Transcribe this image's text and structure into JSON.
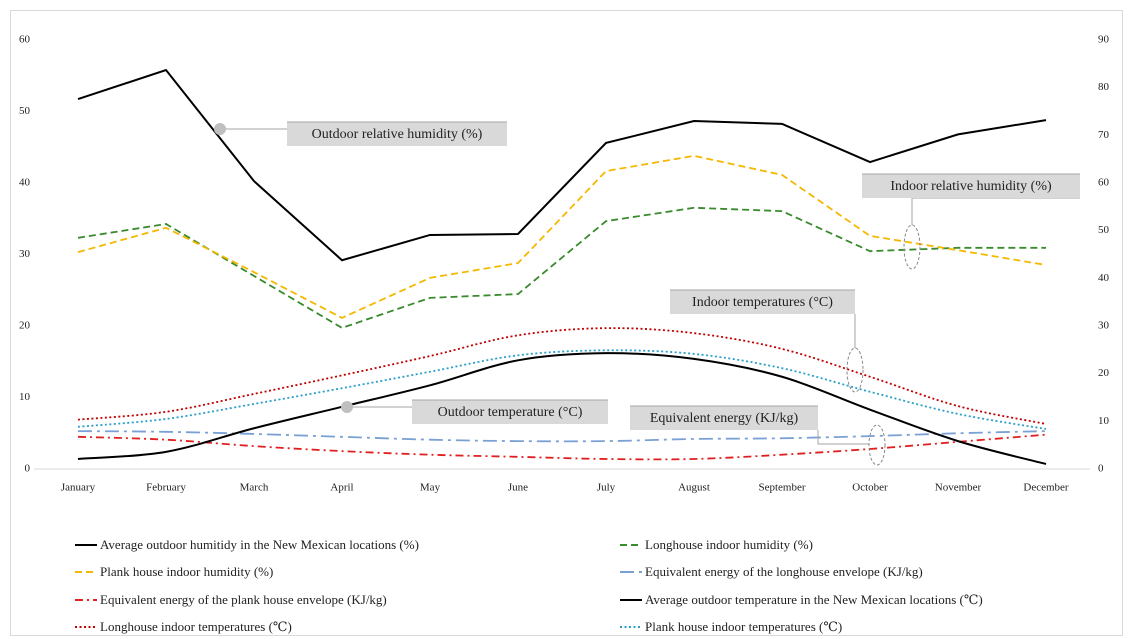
{
  "chart_data": {
    "type": "line",
    "categories": [
      "January",
      "February",
      "March",
      "April",
      "May",
      "June",
      "July",
      "August",
      "September",
      "October",
      "November",
      "December"
    ],
    "ylim": [
      0,
      60
    ],
    "yticks": [
      0,
      10,
      20,
      30,
      40,
      50,
      60
    ],
    "y2lim": [
      0,
      90
    ],
    "y2ticks": [
      0,
      10,
      20,
      30,
      40,
      50,
      60,
      70,
      80,
      90
    ],
    "series": [
      {
        "name": "Average outdoor humitidy in the New Mexican locations (%)",
        "color": "#000000",
        "dash": "solid",
        "axis": "y2",
        "smooth": false,
        "values": [
          77.6,
          83.7,
          60.4,
          43.8,
          49.1,
          49.3,
          68.4,
          73.0,
          72.4,
          64.4,
          70.2,
          73.2
        ]
      },
      {
        "name": "Longhouse indoor humidity (%)",
        "color": "#3a8a2e",
        "dash": "dash",
        "axis": "y2",
        "smooth": false,
        "values": [
          48.5,
          51.4,
          40.5,
          29.6,
          35.9,
          36.7,
          52.0,
          54.8,
          54.1,
          45.7,
          46.4,
          46.4
        ]
      },
      {
        "name": "Plank house indoor humidity (%)",
        "color": "#f5b800",
        "dash": "dash",
        "axis": "y2",
        "smooth": false,
        "values": [
          45.5,
          50.6,
          41.3,
          31.7,
          40.1,
          43.2,
          62.5,
          65.7,
          61.7,
          48.9,
          45.9,
          42.8
        ]
      },
      {
        "name": "Equivalent energy of the longhouse envelope (KJ/kg)",
        "color": "#7aa0d6",
        "dash": "longdashdot",
        "smooth": true,
        "values": [
          5.3,
          5.2,
          4.9,
          4.5,
          4.1,
          3.9,
          3.9,
          4.2,
          4.3,
          4.6,
          5.0,
          5.3
        ]
      },
      {
        "name": "Equivalent energy of the plank house envelope (KJ/kg)",
        "color": "#e02020",
        "dash": "dashdot",
        "smooth": true,
        "values": [
          4.5,
          4.1,
          3.2,
          2.5,
          2.0,
          1.7,
          1.4,
          1.4,
          2.0,
          2.8,
          3.8,
          4.8
        ]
      },
      {
        "name": "Average outdoor temperature in the New Mexican locations (℃)",
        "color": "#000000",
        "dash": "solid",
        "smooth": true,
        "values": [
          1.4,
          2.4,
          5.7,
          8.7,
          11.7,
          15.2,
          16.2,
          15.4,
          12.9,
          8.3,
          3.9,
          0.7
        ]
      },
      {
        "name": "Longhouse indoor temperatures (℃)",
        "color": "#c00000",
        "dash": "dot",
        "smooth": true,
        "values": [
          6.9,
          8.0,
          10.5,
          13.1,
          15.8,
          18.7,
          19.7,
          19.0,
          16.8,
          12.9,
          8.8,
          6.3
        ]
      },
      {
        "name": "Plank house indoor temperatures (℃)",
        "color": "#2aa0c8",
        "dash": "dot",
        "smooth": true,
        "values": [
          5.9,
          7.0,
          9.1,
          11.3,
          13.6,
          15.9,
          16.6,
          16.1,
          14.1,
          10.8,
          7.7,
          5.6
        ]
      }
    ],
    "annotations": [
      "Outdoor relative humidity (%)",
      "Indoor relative humidity (%)",
      "Indoor temperatures (°C)",
      "Outdoor temperature (°C)",
      "Equivalent energy (KJ/kg)"
    ]
  }
}
